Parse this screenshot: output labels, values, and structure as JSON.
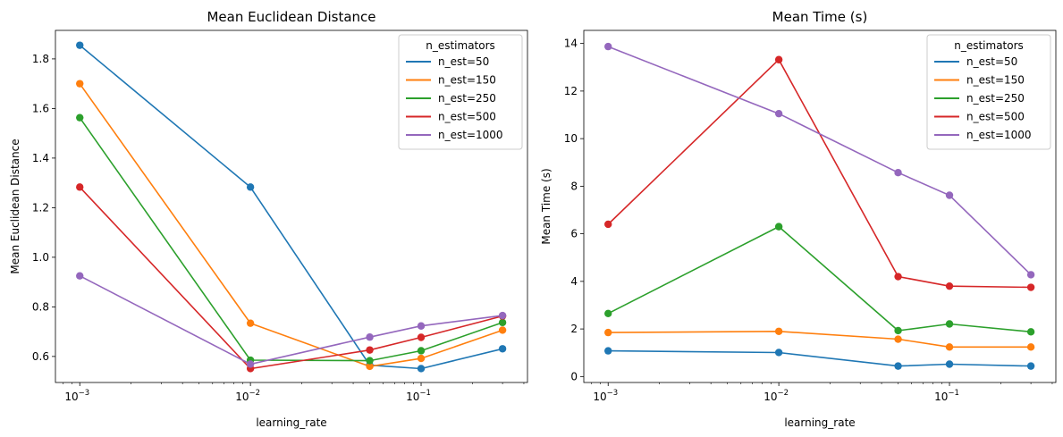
{
  "chart_data": [
    {
      "type": "line",
      "title": "Mean Euclidean Distance",
      "xlabel": "learning_rate",
      "ylabel": "Mean Euclidean Distance",
      "xscale": "log",
      "x": [
        0.001,
        0.01,
        0.05,
        0.1,
        0.3
      ],
      "xlim": [
        0.00072,
        0.42
      ],
      "ylim": [
        0.495,
        1.915
      ],
      "yticks": [
        0.6,
        0.8,
        1.0,
        1.2,
        1.4,
        1.6,
        1.8
      ],
      "ytick_labels": [
        "0.6",
        "0.8",
        "1.0",
        "1.2",
        "1.4",
        "1.6",
        "1.8"
      ],
      "xtick_labels": [
        {
          "base": "10",
          "exp": "−3"
        },
        {
          "base": "10",
          "exp": "−2"
        },
        {
          "base": "10",
          "exp": "−1"
        }
      ],
      "legend_title": "n_estimators",
      "legend_position": "top-right",
      "grid": false,
      "series": [
        {
          "name": "n_est=50",
          "color": "#1f77b4",
          "values": [
            1.855,
            1.283,
            0.565,
            0.551,
            0.631
          ]
        },
        {
          "name": "n_est=150",
          "color": "#ff7f0e",
          "values": [
            1.7,
            0.734,
            0.56,
            0.592,
            0.706
          ]
        },
        {
          "name": "n_est=250",
          "color": "#2ca02c",
          "values": [
            1.563,
            0.585,
            0.583,
            0.623,
            0.737
          ]
        },
        {
          "name": "n_est=500",
          "color": "#d62728",
          "values": [
            1.283,
            0.551,
            0.626,
            0.677,
            0.763
          ]
        },
        {
          "name": "n_est=1000",
          "color": "#9467bd",
          "values": [
            0.925,
            0.569,
            0.678,
            0.723,
            0.765
          ]
        }
      ]
    },
    {
      "type": "line",
      "title": "Mean Time (s)",
      "xlabel": "learning_rate",
      "ylabel": "Mean Time (s)",
      "xscale": "log",
      "x": [
        0.001,
        0.01,
        0.05,
        0.1,
        0.3
      ],
      "xlim": [
        0.00072,
        0.42
      ],
      "ylim": [
        -0.25,
        14.55
      ],
      "yticks": [
        0,
        2,
        4,
        6,
        8,
        10,
        12,
        14
      ],
      "ytick_labels": [
        "0",
        "2",
        "4",
        "6",
        "8",
        "10",
        "12",
        "14"
      ],
      "xtick_labels": [
        {
          "base": "10",
          "exp": "−3"
        },
        {
          "base": "10",
          "exp": "−2"
        },
        {
          "base": "10",
          "exp": "−1"
        }
      ],
      "legend_title": "n_estimators",
      "legend_position": "top-right",
      "grid": false,
      "series": [
        {
          "name": "n_est=50",
          "color": "#1f77b4",
          "values": [
            1.08,
            1.01,
            0.44,
            0.52,
            0.44
          ]
        },
        {
          "name": "n_est=150",
          "color": "#ff7f0e",
          "values": [
            1.85,
            1.9,
            1.57,
            1.24,
            1.24
          ]
        },
        {
          "name": "n_est=250",
          "color": "#2ca02c",
          "values": [
            2.65,
            6.3,
            1.93,
            2.21,
            1.88
          ]
        },
        {
          "name": "n_est=500",
          "color": "#d62728",
          "values": [
            6.4,
            13.32,
            4.2,
            3.8,
            3.75
          ]
        },
        {
          "name": "n_est=1000",
          "color": "#9467bd",
          "values": [
            13.87,
            11.05,
            8.57,
            7.62,
            4.28
          ]
        }
      ]
    }
  ]
}
